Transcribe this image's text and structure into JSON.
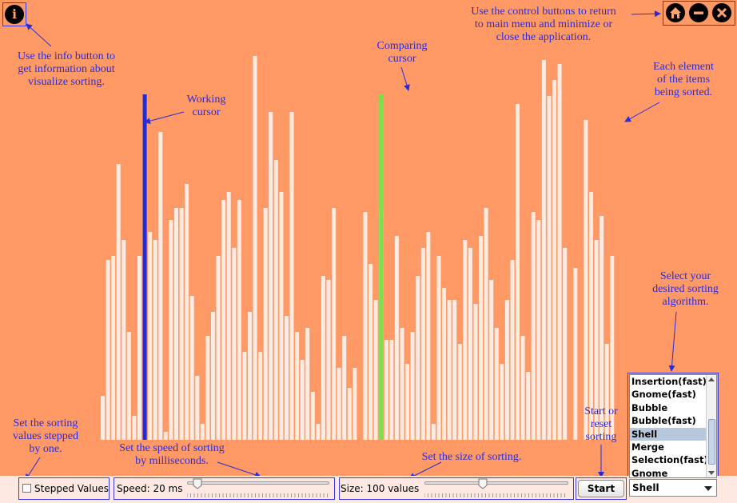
{
  "chart_data": {
    "type": "bar",
    "values": [
      55,
      225,
      230,
      345,
      250,
      135,
      30,
      230,
      420,
      260,
      250,
      385,
      10,
      275,
      290,
      290,
      320,
      180,
      80,
      20,
      130,
      160,
      230,
      300,
      310,
      240,
      300,
      110,
      160,
      480,
      110,
      290,
      410,
      350,
      310,
      155,
      410,
      135,
      100,
      140,
      60,
      20,
      205,
      200,
      290,
      90,
      130,
      65,
      90,
      0,
      285,
      220,
      175,
      290,
      125,
      125,
      255,
      140,
      95,
      135,
      205,
      240,
      260,
      20,
      230,
      190,
      175,
      175,
      120,
      250,
      240,
      170,
      255,
      290,
      200,
      140,
      95,
      175,
      225,
      420,
      130,
      85,
      285,
      275,
      475,
      430,
      450,
      470,
      240,
      0,
      215,
      0,
      400,
      310,
      250,
      280,
      120,
      230,
      0,
      0
    ],
    "working_index": 6,
    "comparing_index": 50,
    "ymax": 480
  },
  "colors": {
    "background": "#ff9966",
    "bar": "#fdeae0",
    "working": "#1a2de0",
    "comparing": "#7ce04a",
    "annotation": "#2b2bd6"
  },
  "annotations": {
    "info": [
      "Use the info button to",
      "get information about",
      "visualize sorting."
    ],
    "controls": [
      "Use the control buttons to return",
      "to main menu and minimize or",
      "close the application."
    ],
    "comparing": [
      "Comparing",
      "cursor"
    ],
    "working": [
      "Working",
      "cursor"
    ],
    "element": [
      "Each element",
      "of the items",
      "being sorted."
    ],
    "algorithm": [
      "Select your",
      "desired sorting",
      "algorithm."
    ],
    "stepped": [
      "Set the sorting",
      "values stepped",
      "by one."
    ],
    "speed": [
      "Set the speed of sorting",
      "by milliseconds."
    ],
    "size": [
      "Set the size of sorting."
    ],
    "start": [
      "Start or",
      "reset",
      "sorting"
    ]
  },
  "icons": {
    "info": "info-icon",
    "home": "home-icon",
    "minimize": "minimize-icon",
    "close": "close-icon"
  },
  "controls": {
    "stepped_label": "Stepped Values",
    "stepped_checked": false,
    "speed_label": "Speed: 20 ms",
    "speed_fraction": 0.04,
    "size_label": "Size: 100 values",
    "size_fraction": 0.4,
    "start_label": "Start",
    "algorithms": [
      "Insertion(fast)",
      "Gnome(fast)",
      "Bubble",
      "Bubble(fast)",
      "Shell",
      "Merge",
      "Selection(fast)",
      "Gnome"
    ],
    "selected_algorithm": "Shell"
  }
}
